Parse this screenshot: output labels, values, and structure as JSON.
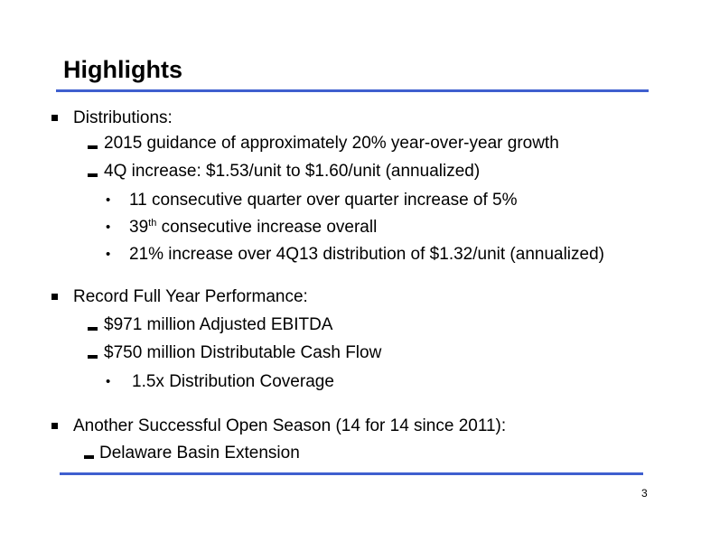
{
  "slide": {
    "title": "Highlights",
    "sections": [
      {
        "label": "Distributions:",
        "items": [
          "2015 guidance of approximately 20% year-over-year growth",
          "4Q increase: $1.53/unit to $1.60/unit (annualized)"
        ],
        "subitems": [
          "11 consecutive quarter over quarter increase of 5%",
          {
            "pre": "39",
            "sup": "th",
            "post": " consecutive increase overall"
          },
          "21% increase over 4Q13 distribution of $1.32/unit (annualized)"
        ]
      },
      {
        "label": "Record Full Year Performance:",
        "items": [
          "$971 million Adjusted EBITDA",
          "$750 million Distributable Cash Flow"
        ],
        "subitems": [
          "1.5x Distribution Coverage"
        ]
      },
      {
        "label": "Another Successful Open Season (14 for 14 since 2011):",
        "items": [
          "Delaware Basin Extension"
        ]
      }
    ],
    "page_number": "3",
    "colors": {
      "rule": "#3f5fcf",
      "text": "#000000",
      "background": "#ffffff"
    },
    "icons": {
      "level1": "square-bullet-icon",
      "level2": "dash-bullet-icon",
      "level3": "dot-bullet-icon"
    }
  }
}
